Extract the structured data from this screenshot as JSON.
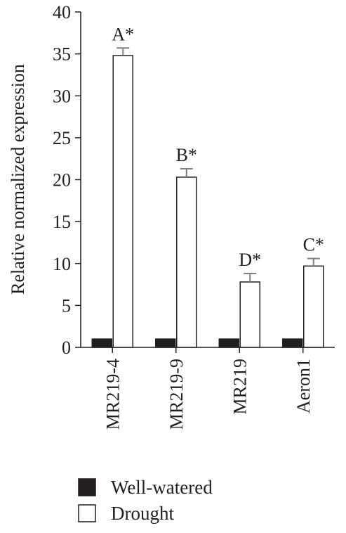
{
  "chart_data": {
    "type": "bar",
    "title": "",
    "xlabel": "",
    "ylabel": "Relative normalized expression",
    "ylim": [
      0,
      40
    ],
    "yticks": [
      0,
      5,
      10,
      15,
      20,
      25,
      30,
      35,
      40
    ],
    "categories": [
      "MR219-4",
      "MR219-9",
      "MR219",
      "Aeron1"
    ],
    "series": [
      {
        "name": "Well-watered",
        "color": "#231f20",
        "values": [
          1,
          1,
          1,
          1
        ],
        "errors": [
          0,
          0,
          0,
          0
        ]
      },
      {
        "name": "Drought",
        "color": "#ffffff",
        "values": [
          34.8,
          20.3,
          7.8,
          9.7
        ],
        "errors": [
          0.9,
          1.0,
          1.0,
          0.9
        ]
      }
    ],
    "annotations": [
      "A*",
      "B*",
      "D*",
      "C*"
    ],
    "legend_position": "bottom-left",
    "grid": false
  }
}
